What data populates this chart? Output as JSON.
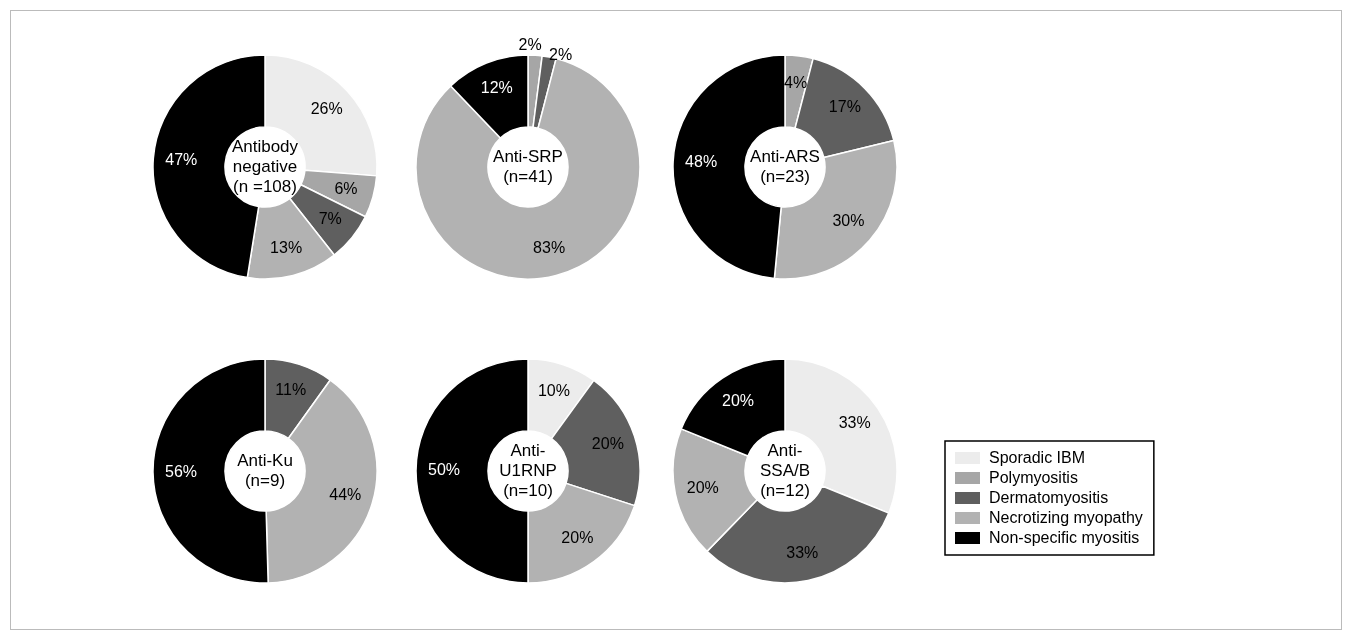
{
  "chart_data": [
    {
      "type": "donut",
      "title": "Antibody negative (n =108)",
      "categories": [
        null,
        null,
        null,
        null,
        null
      ],
      "values": [
        26,
        6,
        7,
        13,
        47
      ],
      "value_labels": [
        "26%",
        "6%",
        "7%",
        "13%",
        "47%"
      ],
      "colors": [
        "#ececec",
        "#a6a6a6",
        "#5f5f5f",
        "#b2b2b2",
        "#000000"
      ]
    },
    {
      "type": "donut",
      "title": "Anti-SRP (n=41)",
      "categories": [
        null,
        null,
        null,
        null,
        null
      ],
      "values": [
        0,
        2,
        2,
        83,
        12
      ],
      "value_labels": [
        null,
        "2%",
        "2%",
        "83%",
        "12%"
      ],
      "colors": [
        "#ececec",
        "#a6a6a6",
        "#5f5f5f",
        "#b2b2b2",
        "#000000"
      ]
    },
    {
      "type": "donut",
      "title": "Anti-ARS (n=23)",
      "categories": [
        null,
        null,
        null,
        null,
        null
      ],
      "values": [
        0,
        4,
        17,
        30,
        48
      ],
      "value_labels": [
        null,
        "4%",
        "17%",
        "30%",
        "48%"
      ],
      "colors": [
        "#ececec",
        "#a6a6a6",
        "#5f5f5f",
        "#b2b2b2",
        "#000000"
      ]
    },
    {
      "type": "donut",
      "title": "Anti-Ku (n=9)",
      "categories": [
        null,
        null,
        null,
        null,
        null
      ],
      "values": [
        0,
        0,
        11,
        44,
        56
      ],
      "value_labels": [
        null,
        null,
        "11%",
        "44%",
        "56%"
      ],
      "colors": [
        "#ececec",
        "#a6a6a6",
        "#5f5f5f",
        "#b2b2b2",
        "#000000"
      ]
    },
    {
      "type": "donut",
      "title": "Anti-U1RNP (n=10)",
      "categories": [
        null,
        null,
        null,
        null,
        null
      ],
      "values": [
        10,
        0,
        20,
        20,
        50
      ],
      "value_labels": [
        "10%",
        null,
        "20%",
        "20%",
        "50%"
      ],
      "colors": [
        "#ececec",
        "#a6a6a6",
        "#5f5f5f",
        "#b2b2b2",
        "#000000"
      ]
    },
    {
      "type": "donut",
      "title": "Anti-SSA/B (n=12)",
      "categories": [
        "Sporadic IBM",
        "Polymyositis",
        "Dermatomyositis",
        "Necrotizing myopathy",
        "Non-specific myositis"
      ],
      "values": [
        33,
        0,
        33,
        20,
        20
      ],
      "value_labels": [
        "33%",
        null,
        "33%",
        "20%",
        "20%"
      ],
      "colors": [
        "#ececec",
        "#a6a6a6",
        "#5f5f5f",
        "#b2b2b2",
        "#000000"
      ],
      "legend": "right"
    }
  ]
}
